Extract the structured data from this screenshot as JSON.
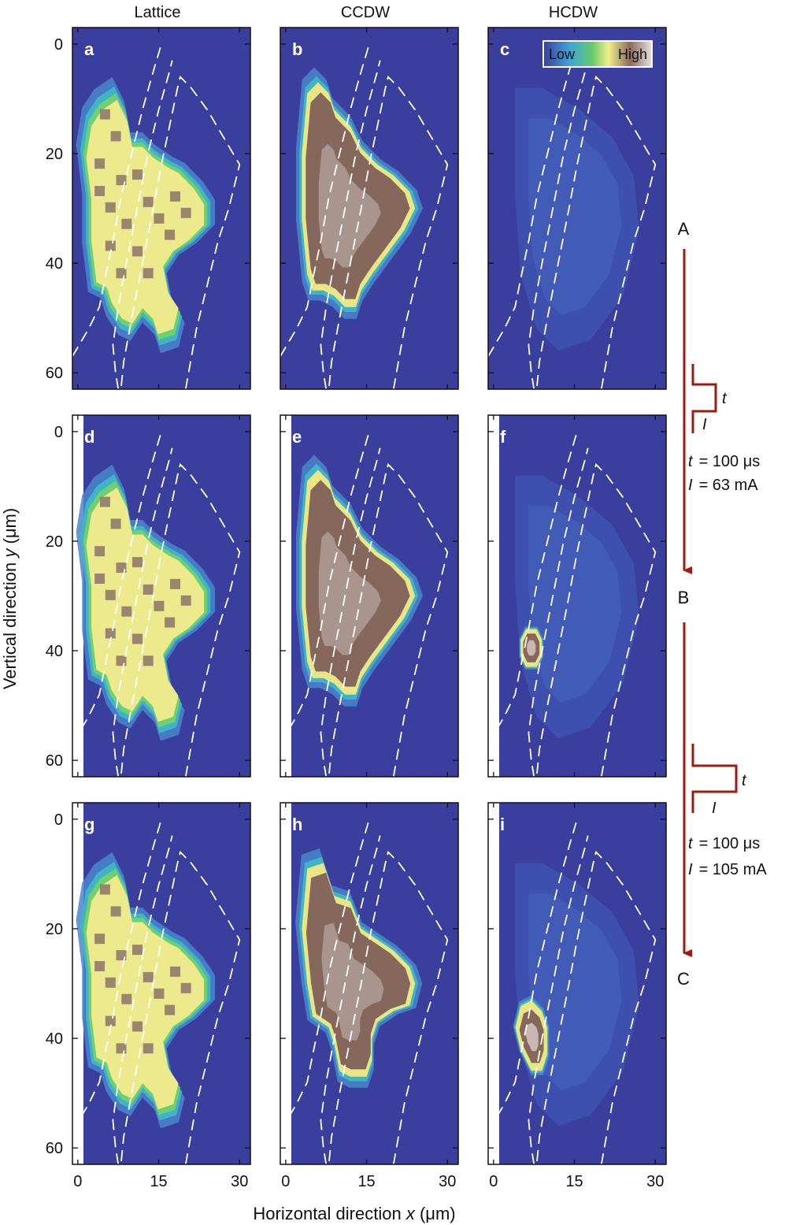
{
  "columns": [
    "Lattice",
    "CCDW",
    "HCDW"
  ],
  "panel_letters": [
    "a",
    "b",
    "c",
    "d",
    "e",
    "f",
    "g",
    "h",
    "i"
  ],
  "axes": {
    "xlabel_prefix": "Horizontal direction ",
    "xlabel_var": "x",
    "xlabel_unit": " (μm)",
    "ylabel_prefix": "Vertical direction ",
    "ylabel_var": "y",
    "ylabel_unit": " (μm)",
    "xticks": [
      "0",
      "15",
      "30"
    ],
    "yticks": [
      "0",
      "20",
      "40",
      "60"
    ],
    "xrange": [
      -1,
      32
    ],
    "yrange": [
      -3,
      63
    ]
  },
  "colorbar": {
    "low": "Low",
    "high": "High"
  },
  "colors": {
    "bg": "#3a3e9c",
    "arrow": "#a01a12",
    "dashes": "#ffffff"
  },
  "sequence": {
    "states": [
      "A",
      "B",
      "C"
    ],
    "steps": [
      {
        "t_var": "t",
        "I_var": "I",
        "t_value": "= 100 μs",
        "I_value": "= 63 mA"
      },
      {
        "t_var": "t",
        "I_var": "I",
        "t_value": "= 100 μs",
        "I_value": "= 105 mA"
      }
    ]
  }
}
